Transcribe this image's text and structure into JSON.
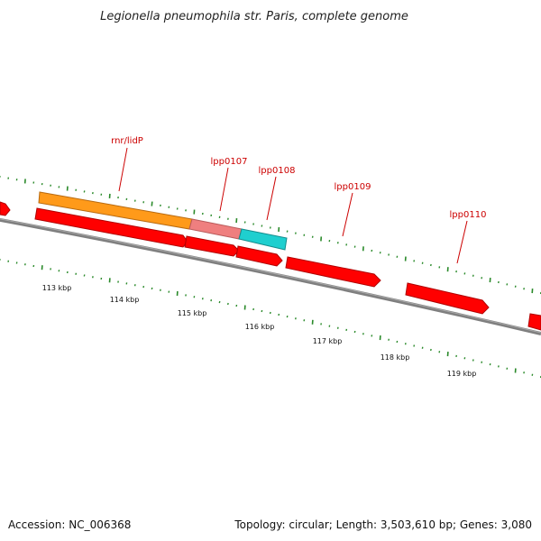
{
  "title": "Legionella pneumophila str. Paris, complete genome",
  "footer": {
    "accession": "Accession: NC_006368",
    "summary": "Topology: circular; Length: 3,503,610 bp; Genes: 3,080"
  },
  "gene_labels": [
    "rnr/lidP",
    "lpp0107",
    "lpp0108",
    "lpp0109",
    "lpp0110"
  ],
  "scale_labels": [
    "113 kbp",
    "114 kbp",
    "115 kbp",
    "116 kbp",
    "117 kbp",
    "118 kbp",
    "119 kbp"
  ],
  "colors": {
    "gene": "#ff0000",
    "gene_dark": "#c40000",
    "orange_feature": "#ff9a1a",
    "pink_feature": "#ef7f7f",
    "cyan_feature": "#1fcfcf",
    "backbone": "#7f7f7f",
    "tick": "#2a8a2a",
    "label": "#cc0000"
  }
}
